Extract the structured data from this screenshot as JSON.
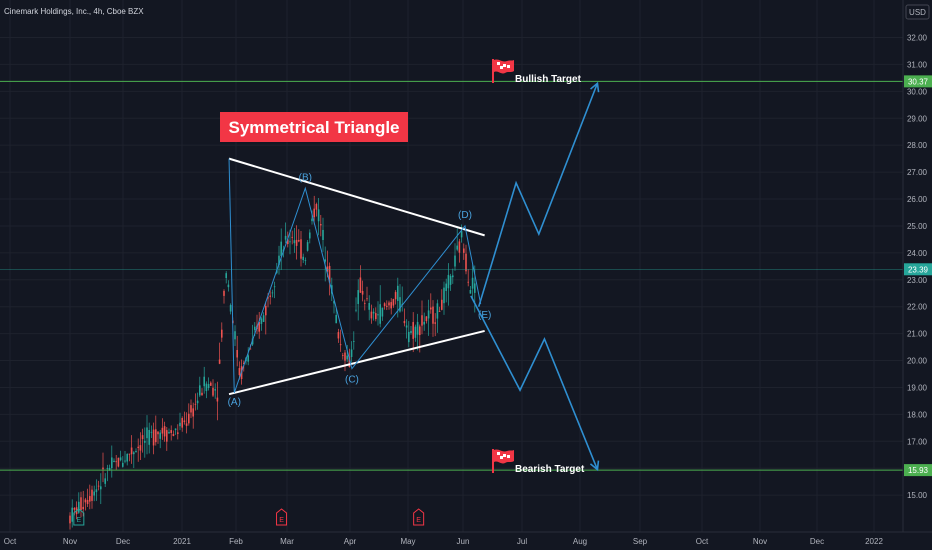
{
  "header": {
    "symbol": "Cinemark Holdings, Inc., 4h, Cboe BZX",
    "currency": "USD"
  },
  "annotations": {
    "title": "Symmetrical Triangle",
    "bullish_label": "Bullish Target",
    "bearish_label": "Bearish Target",
    "earnings_marker": "E"
  },
  "colors": {
    "background": "#131722",
    "up": "#26a69a",
    "down": "#ef5350",
    "trendline": "#ffffff",
    "wave": "#2f8fd1",
    "target_line": "#4caf50",
    "title_bg": "#f23645",
    "flag": "#f23645"
  },
  "chart_data": {
    "type": "candlestick",
    "y_axis": {
      "min": 14.5,
      "max": 32.5,
      "ticks": [
        "15.00",
        "16.00",
        "17.00",
        "18.00",
        "19.00",
        "20.00",
        "21.00",
        "22.00",
        "23.00",
        "24.00",
        "25.00",
        "26.00",
        "27.00",
        "28.00",
        "29.00",
        "30.00",
        "31.00",
        "32.00"
      ]
    },
    "x_axis": {
      "ticks": [
        "Oct",
        "Nov",
        "Dec",
        "2021",
        "Feb",
        "Mar",
        "Apr",
        "May",
        "Jun",
        "Jul",
        "Aug",
        "Sep",
        "Oct",
        "Nov",
        "Dec",
        "2022"
      ]
    },
    "price_labels": {
      "bullish_target": "30.37",
      "current": "23.39",
      "bearish_target": "15.93"
    },
    "levels": {
      "bullish_target": 30.37,
      "current": 23.39,
      "bearish_target": 15.93
    },
    "triangle": {
      "upper": [
        {
          "date": "2021-01-28",
          "y": 27.5
        },
        {
          "date": "2021-06-12",
          "y": 24.65
        }
      ],
      "lower": [
        {
          "date": "2021-01-28",
          "y": 18.75
        },
        {
          "date": "2021-06-12",
          "y": 21.1
        }
      ]
    },
    "waves": [
      {
        "label": "(A)",
        "date": "2021-01-31",
        "y": 18.8
      },
      {
        "label": "(B)",
        "date": "2021-03-10",
        "y": 26.4
      },
      {
        "label": "(C)",
        "date": "2021-04-02",
        "y": 19.7
      },
      {
        "label": "(D)",
        "date": "2021-06-02",
        "y": 25.0
      },
      {
        "label": "(E)",
        "date": "2021-06-10",
        "y": 22.1
      }
    ],
    "bullish_path": [
      {
        "date": "2021-06-09",
        "y": 22.0
      },
      {
        "date": "2021-06-28",
        "y": 26.6
      },
      {
        "date": "2021-07-10",
        "y": 24.7
      },
      {
        "date": "2021-08-10",
        "y": 30.3
      }
    ],
    "bearish_path": [
      {
        "date": "2021-06-05",
        "y": 22.4
      },
      {
        "date": "2021-06-30",
        "y": 18.9
      },
      {
        "date": "2021-07-13",
        "y": 20.8
      },
      {
        "date": "2021-08-10",
        "y": 15.95
      }
    ],
    "earnings_dates": [
      "2020-11-06",
      "2021-02-26",
      "2021-05-07"
    ]
  }
}
